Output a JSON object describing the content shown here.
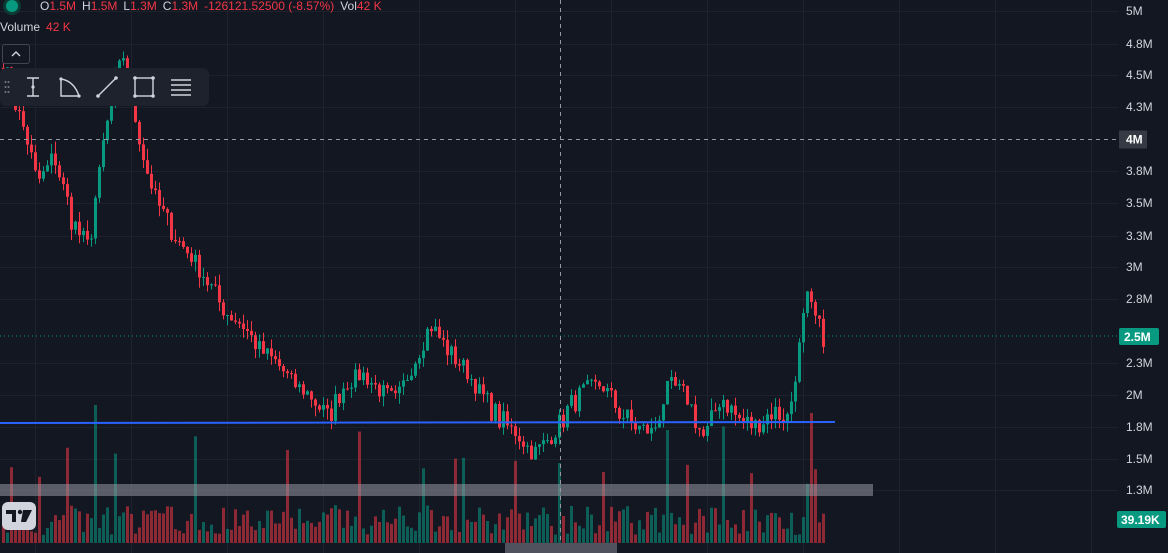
{
  "legend": {
    "open_label": "O",
    "open_value": "1.5M",
    "high_label": "H",
    "high_value": "1.5M",
    "low_label": "L",
    "low_value": "1.3M",
    "close_label": "C",
    "close_value": "1.3M",
    "change_value": "-126121.52500 (-8.57%)",
    "vol_label": "Vol",
    "vol_value": "42 K",
    "volume_label": "Volume",
    "volume_value": "42 K"
  },
  "drawing_toolbar": {
    "icons": [
      "text-cursor-icon",
      "arc-icon",
      "trend-line-icon",
      "rectangle-icon",
      "horizontal-lines-icon"
    ]
  },
  "chart_data": {
    "type": "candlestick",
    "y_ticks": [
      "5M",
      "4.8M",
      "4.5M",
      "4.3M",
      "3.8M",
      "3.5M",
      "3.3M",
      "3M",
      "2.8M",
      "2.3M",
      "2M",
      "1.8M",
      "1.5M",
      "1.3M"
    ],
    "current_price_label": "2.5M",
    "crosshair_price_label": "4M",
    "volume_label": "39.19K",
    "horizontal_line_price": 1.8,
    "colors": {
      "up": "#089981",
      "down": "#f23645",
      "line": "#2962ff",
      "background": "#131722",
      "grid": "#1e222d"
    },
    "grid": true,
    "anchor_closes": [
      4.6,
      4.2,
      3.7,
      3.9,
      3.4,
      3.2,
      4.1,
      4.7,
      4.0,
      3.5,
      3.3,
      3.1,
      2.9,
      2.7,
      2.6,
      2.4,
      2.3,
      2.1,
      2.0,
      1.85,
      2.1,
      2.2,
      2.05,
      1.95,
      2.3,
      2.6,
      2.4,
      2.25,
      2.0,
      1.85,
      1.75,
      1.55,
      1.7,
      1.9,
      2.05,
      2.1,
      1.9,
      1.8,
      1.75,
      2.1,
      2.0,
      1.7,
      2.0,
      1.85,
      1.8,
      1.9,
      1.85,
      2.8,
      2.5
    ]
  },
  "brand": {
    "logo": "TV"
  }
}
